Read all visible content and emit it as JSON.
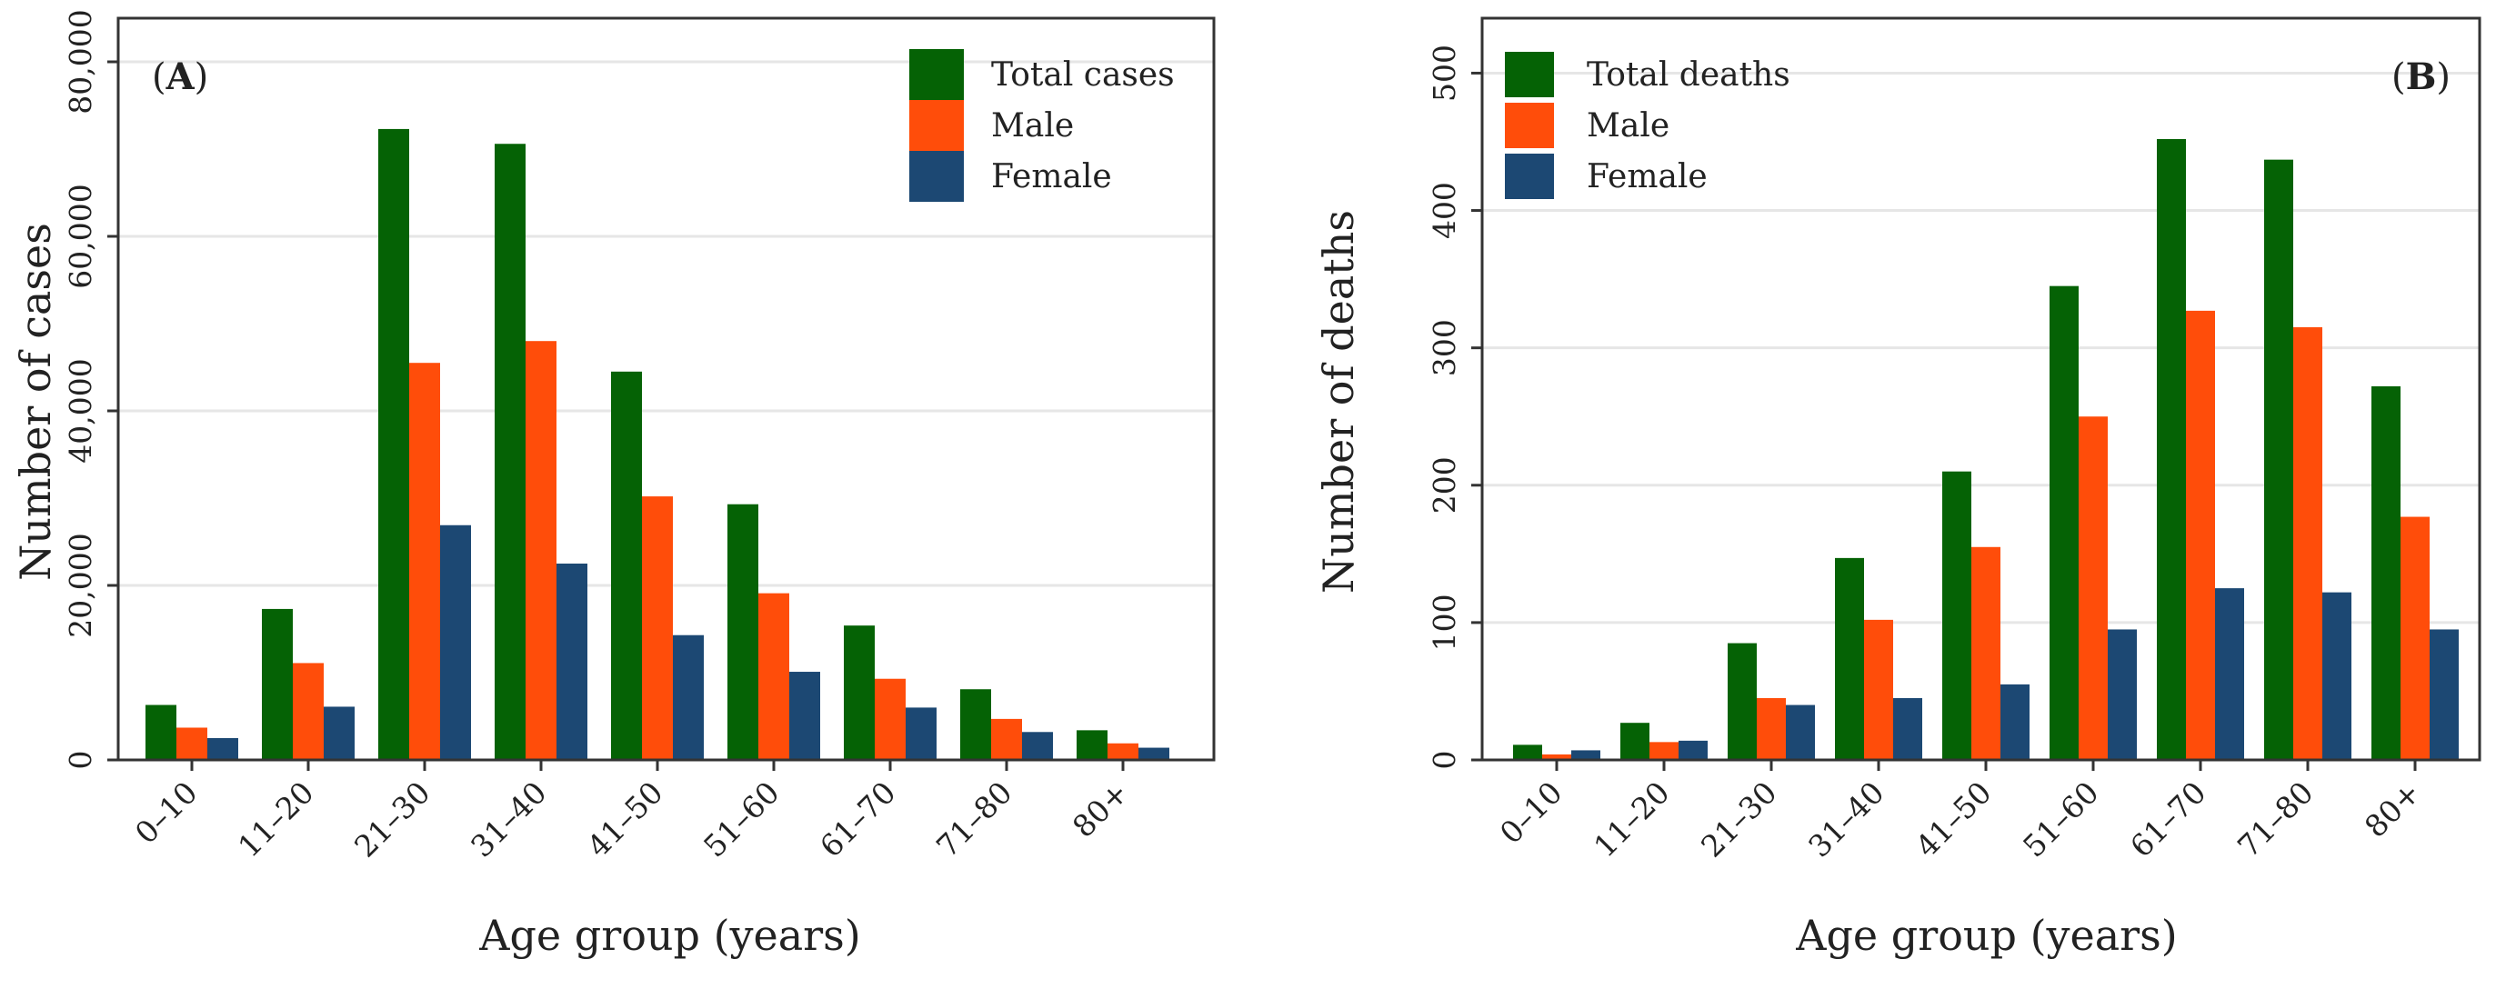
{
  "chart_data": [
    {
      "type": "bar",
      "panel_label": "(A)",
      "panel_label_parts": [
        "(",
        "A",
        ")"
      ],
      "xlabel": "Age group (years)",
      "ylabel": "Number of cases",
      "ylim": [
        0,
        85000
      ],
      "yticks": [
        0,
        20000,
        40000,
        60000,
        80000
      ],
      "ytick_labels": [
        "0",
        "20,000",
        "40,000",
        "60,000",
        "80,000"
      ],
      "grid": true,
      "legend_position": "top-right",
      "categories": [
        "0–10",
        "11–20",
        "21–30",
        "31–40",
        "41–50",
        "51–60",
        "61–70",
        "71–80",
        "80+"
      ],
      "series": [
        {
          "name": "Total cases",
          "color": "#056205",
          "values": [
            6300,
            17300,
            72300,
            70600,
            44500,
            29300,
            15400,
            8100,
            3400
          ]
        },
        {
          "name": "Male",
          "color": "#ff4d0a",
          "values": [
            3700,
            11100,
            45500,
            48000,
            30200,
            19100,
            9300,
            4700,
            1900
          ]
        },
        {
          "name": "Female",
          "color": "#1c4873",
          "values": [
            2500,
            6100,
            26900,
            22500,
            14300,
            10100,
            6000,
            3200,
            1400
          ]
        }
      ]
    },
    {
      "type": "bar",
      "panel_label": "(B)",
      "panel_label_parts": [
        "(",
        "B",
        ")"
      ],
      "xlabel": "Age group (years)",
      "ylabel": "Number of deaths",
      "ylim": [
        0,
        540
      ],
      "yticks": [
        0,
        100,
        200,
        300,
        400,
        500
      ],
      "ytick_labels": [
        "0",
        "100",
        "200",
        "300",
        "400",
        "500"
      ],
      "grid": true,
      "legend_position": "top-left",
      "categories": [
        "0–10",
        "11–20",
        "21–30",
        "31–40",
        "41–50",
        "51–60",
        "61–70",
        "71–80",
        "80+"
      ],
      "series": [
        {
          "name": "Total deaths",
          "color": "#056205",
          "values": [
            11,
            27,
            85,
            147,
            210,
            345,
            452,
            437,
            272
          ]
        },
        {
          "name": "Male",
          "color": "#ff4d0a",
          "values": [
            4,
            13,
            45,
            102,
            155,
            250,
            327,
            315,
            177
          ]
        },
        {
          "name": "Female",
          "color": "#1c4873",
          "values": [
            7,
            14,
            40,
            45,
            55,
            95,
            125,
            122,
            95
          ]
        }
      ]
    }
  ]
}
